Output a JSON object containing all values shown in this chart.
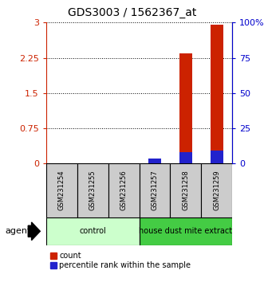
{
  "title": "GDS3003 / 1562367_at",
  "samples": [
    "GSM231254",
    "GSM231255",
    "GSM231256",
    "GSM231257",
    "GSM231258",
    "GSM231259"
  ],
  "groups": [
    {
      "label": "control",
      "color": "#ccffcc",
      "samples": [
        0,
        1,
        2
      ]
    },
    {
      "label": "house dust mite extract",
      "color": "#44cc44",
      "samples": [
        3,
        4,
        5
      ]
    }
  ],
  "red_values": [
    0.0,
    0.0,
    0.0,
    0.07,
    2.35,
    2.95
  ],
  "blue_values": [
    0.0,
    0.0,
    0.0,
    3.5,
    8.0,
    9.5
  ],
  "y_left_ticks": [
    0,
    0.75,
    1.5,
    2.25,
    3
  ],
  "y_left_labels": [
    "0",
    "0.75",
    "1.5",
    "2.25",
    "3"
  ],
  "y_right_ticks": [
    0,
    25,
    50,
    75,
    100
  ],
  "y_right_labels": [
    "0",
    "25",
    "50",
    "75",
    "100%"
  ],
  "ylim_left": [
    0,
    3
  ],
  "ylim_right": [
    0,
    100
  ],
  "red_color": "#cc2200",
  "blue_color": "#2222cc",
  "bg_color": "#ffffff",
  "left_tick_color": "#cc2200",
  "right_tick_color": "#0000cc",
  "agent_label": "agent",
  "legend_count": "count",
  "legend_percentile": "percentile rank within the sample",
  "sample_box_color": "#cccccc",
  "title_fontsize": 10
}
